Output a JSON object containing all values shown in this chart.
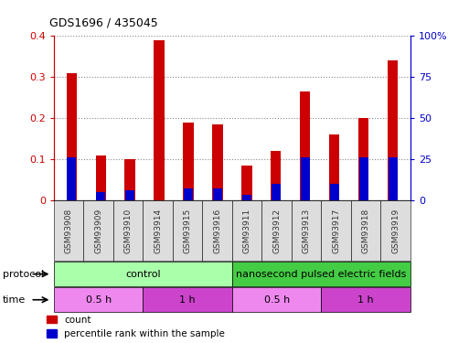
{
  "title": "GDS1696 / 435045",
  "samples": [
    "GSM93908",
    "GSM93909",
    "GSM93910",
    "GSM93914",
    "GSM93915",
    "GSM93916",
    "GSM93911",
    "GSM93912",
    "GSM93913",
    "GSM93917",
    "GSM93918",
    "GSM93919"
  ],
  "red_values": [
    0.31,
    0.11,
    0.1,
    0.39,
    0.19,
    0.185,
    0.085,
    0.12,
    0.265,
    0.16,
    0.2,
    0.34
  ],
  "blue_values": [
    0.105,
    0.02,
    0.025,
    0.0,
    0.03,
    0.03,
    0.015,
    0.04,
    0.105,
    0.04,
    0.105,
    0.105
  ],
  "left_ylim": [
    0,
    0.4
  ],
  "right_ylim": [
    0,
    100
  ],
  "left_yticks": [
    0,
    0.1,
    0.2,
    0.3,
    0.4
  ],
  "right_yticks": [
    0,
    25,
    50,
    75,
    100
  ],
  "right_yticklabels": [
    "0",
    "25",
    "50",
    "75",
    "100%"
  ],
  "left_color": "#cc0000",
  "right_color": "#0000cc",
  "bar_width": 0.35,
  "protocol_groups": [
    {
      "label": "control",
      "start": 0,
      "end": 6,
      "color": "#aaffaa"
    },
    {
      "label": "nanosecond pulsed electric fields",
      "start": 6,
      "end": 12,
      "color": "#44cc44"
    }
  ],
  "time_groups": [
    {
      "label": "0.5 h",
      "start": 0,
      "end": 3,
      "color": "#ee88ee"
    },
    {
      "label": "1 h",
      "start": 3,
      "end": 6,
      "color": "#cc44cc"
    },
    {
      "label": "0.5 h",
      "start": 6,
      "end": 9,
      "color": "#ee88ee"
    },
    {
      "label": "1 h",
      "start": 9,
      "end": 12,
      "color": "#cc44cc"
    }
  ],
  "legend_red_label": "count",
  "legend_blue_label": "percentile rank within the sample",
  "bg_color": "#ffffff",
  "grid_color": "#888888",
  "tick_label_color": "#333333",
  "protocol_label": "protocol",
  "time_label": "time",
  "xtick_bg_color": "#dddddd"
}
